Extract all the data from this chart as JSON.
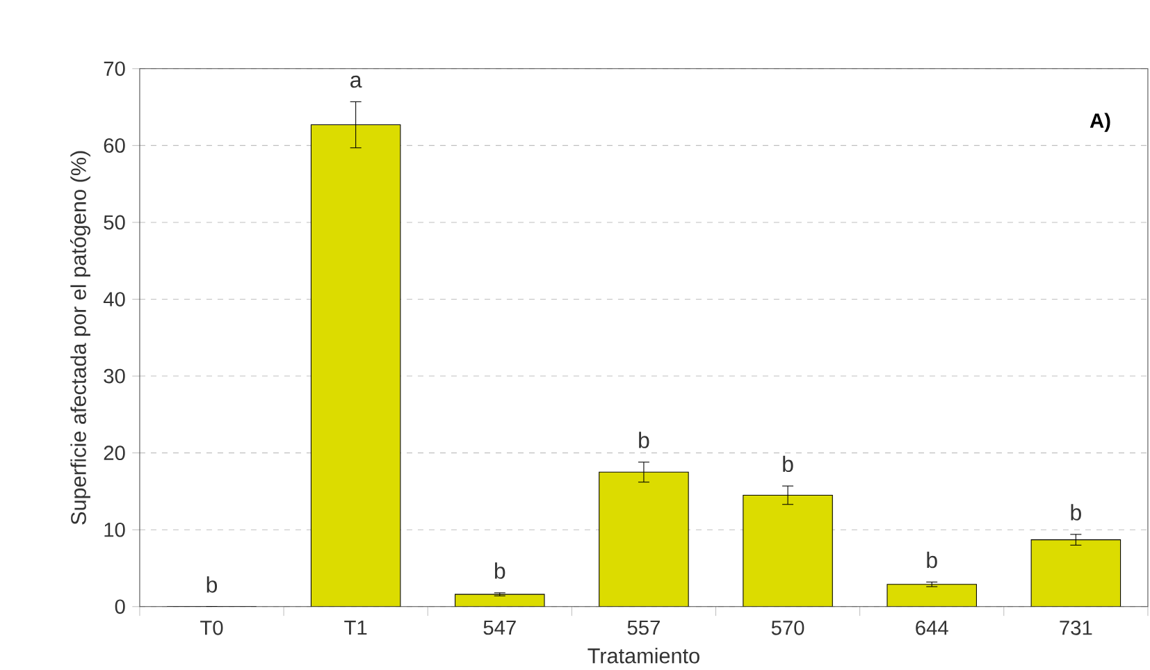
{
  "chart_data": {
    "type": "bar",
    "xlabel": "Tratamiento",
    "ylabel": "Superficie afectada por el patógeno (%)",
    "categories": [
      "T0",
      "T1",
      "547",
      "557",
      "570",
      "644",
      "731"
    ],
    "values": [
      0,
      62.7,
      1.6,
      17.5,
      14.5,
      2.9,
      8.7
    ],
    "errors": [
      null,
      3,
      0.2,
      1.3,
      1.2,
      0.3,
      0.7
    ],
    "color": "#dcdc00",
    "ylim": [
      0,
      70
    ],
    "yticks": [
      0,
      10,
      20,
      30,
      40,
      50,
      60,
      70
    ],
    "grid": "y",
    "annotations": [
      "A)",
      {
        "text": "b",
        "x": "T0",
        "y": 0
      },
      {
        "text": "a",
        "x": "T1",
        "y": 65.7
      },
      {
        "text": "b",
        "x": "547",
        "y": 1.8
      },
      {
        "text": "b",
        "x": "557",
        "y": 18.8
      },
      {
        "text": "b",
        "x": "570",
        "y": 15.7
      },
      {
        "text": "b",
        "x": "644",
        "y": 3.2
      },
      {
        "text": "b",
        "x": "731",
        "y": 9.4
      }
    ]
  }
}
